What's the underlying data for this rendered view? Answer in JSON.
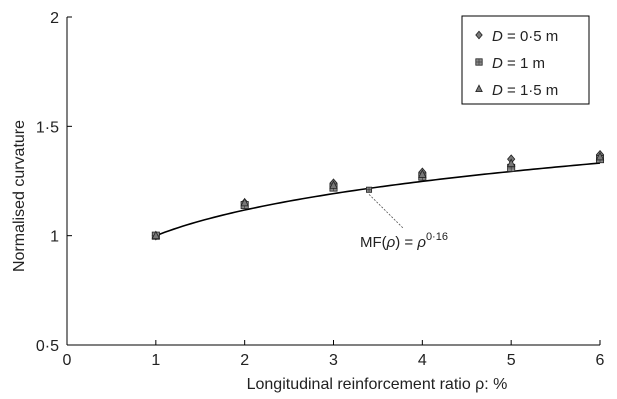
{
  "chart_data": {
    "type": "scatter",
    "xlabel": "Longitudinal reinforcement ratio ρ: %",
    "ylabel": "Normalised curvature",
    "xlim": [
      0,
      6
    ],
    "ylim": [
      0.5,
      2
    ],
    "xticks": [
      0,
      1,
      2,
      3,
      4,
      5,
      6
    ],
    "xtick_labels": [
      "0",
      "1",
      "2",
      "3",
      "4",
      "5",
      "6"
    ],
    "yticks": [
      0.5,
      1,
      1.5,
      2
    ],
    "ytick_labels": [
      "0·5",
      "1",
      "1·5",
      "2"
    ],
    "grid": false,
    "legend_position": "top-right",
    "series": [
      {
        "name": "D = 0·5 m",
        "name_italic": "D",
        "name_rest": " = 0·5 m",
        "marker": "diamond",
        "x": [
          1,
          2,
          3,
          4,
          5,
          6
        ],
        "y": [
          1.0,
          1.15,
          1.24,
          1.29,
          1.35,
          1.37
        ]
      },
      {
        "name": "D = 1 m",
        "name_italic": "D",
        "name_rest": " = 1 m",
        "marker": "square",
        "x": [
          1,
          2,
          3,
          4,
          5,
          6
        ],
        "y": [
          1.0,
          1.14,
          1.22,
          1.27,
          1.31,
          1.35
        ]
      },
      {
        "name": "D = 1·5 m",
        "name_italic": "D",
        "name_rest": " = 1·5 m",
        "marker": "triangle",
        "x": [
          1,
          2,
          3,
          4,
          5,
          6
        ],
        "y": [
          1.0,
          1.15,
          1.23,
          1.28,
          1.33,
          1.36
        ]
      }
    ],
    "fit_curve": {
      "exponent": 0.16,
      "x_start": 1,
      "x_end": 6
    },
    "extra_point": {
      "x": 3.4,
      "y": 1.21
    },
    "annotation": {
      "text_prefix": "MF(",
      "rho": "ρ",
      "text_mid": ") = ",
      "text_base": "ρ",
      "text_exp": "0·16",
      "arrow_from_x": 3.55,
      "arrow_to_x": 3.4
    }
  }
}
